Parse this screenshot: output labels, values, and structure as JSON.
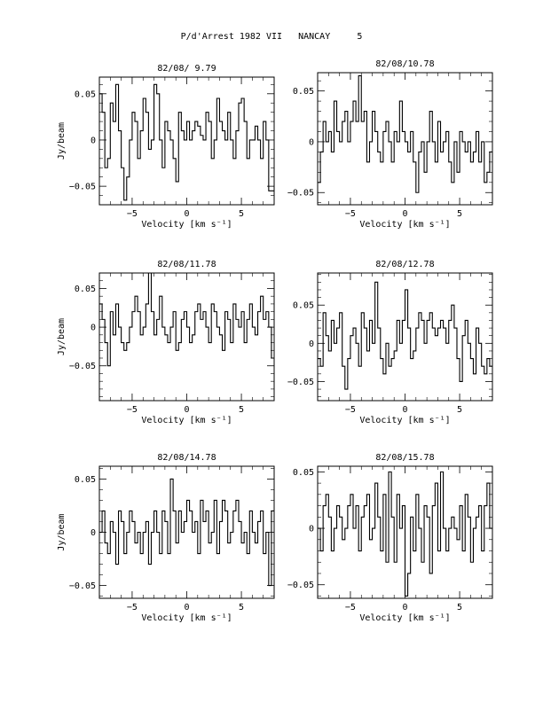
{
  "title": "P/d'Arrest 1982 VII   NANCAY     5",
  "chart_data": [
    {
      "type": "line",
      "title": "82/08/ 9.79",
      "xlabel": "Velocity [km s⁻¹]",
      "ylabel": "Jy/beam",
      "xlim": [
        -8,
        8
      ],
      "ylim": [
        -0.07,
        0.068
      ],
      "xticks": [
        -5,
        0,
        5
      ],
      "yticks": [
        -0.05,
        0,
        0.05
      ],
      "ytick_labels": [
        "−0.05",
        "0",
        "0.05"
      ],
      "series": [
        {
          "x": [
            -8.0,
            -7.75,
            -7.5,
            -7.25,
            -7.0,
            -6.75,
            -6.5,
            -6.25,
            -6.0,
            -5.75,
            -5.5,
            -5.25,
            -5.0,
            -4.75,
            -4.5,
            -4.25,
            -4.0,
            -3.75,
            -3.5,
            -3.25,
            -3.0,
            -2.75,
            -2.5,
            -2.25,
            -2.0,
            -1.75,
            -1.5,
            -1.25,
            -1.0,
            -0.75,
            -0.5,
            -0.25,
            0.0,
            0.25,
            0.5,
            0.75,
            1.0,
            1.25,
            1.5,
            1.75,
            2.0,
            2.25,
            2.5,
            2.75,
            3.0,
            3.25,
            3.5,
            3.75,
            4.0,
            4.25,
            4.5,
            4.75,
            5.0,
            5.25,
            5.5,
            5.75,
            6.0,
            6.25,
            6.5,
            6.75,
            7.0,
            7.25,
            7.5,
            7.75
          ],
          "y": [
            0.05,
            0.03,
            -0.03,
            -0.02,
            0.04,
            0.02,
            0.06,
            0.01,
            -0.03,
            -0.065,
            -0.04,
            0.0,
            0.03,
            0.02,
            -0.02,
            0.01,
            0.045,
            0.03,
            -0.01,
            0.0,
            0.06,
            0.05,
            0.0,
            -0.03,
            0.02,
            0.01,
            0.0,
            -0.02,
            -0.045,
            0.03,
            0.01,
            0.0,
            0.02,
            0.0,
            0.01,
            0.02,
            0.015,
            0.005,
            0.0,
            0.03,
            0.02,
            -0.02,
            0.0,
            0.045,
            0.02,
            0.01,
            0.0,
            0.03,
            0.0,
            -0.02,
            0.01,
            0.04,
            0.045,
            0.02,
            -0.02,
            0.0,
            0.0,
            0.015,
            0.0,
            -0.02,
            0.02,
            0.0,
            -0.055,
            -0.055
          ]
        }
      ]
    },
    {
      "type": "line",
      "title": "82/08/10.78",
      "xlabel": "Velocity [km s⁻¹]",
      "ylabel": "",
      "xlim": [
        -8,
        8
      ],
      "ylim": [
        -0.062,
        0.068
      ],
      "xticks": [
        -5,
        0,
        5
      ],
      "yticks": [
        -0.05,
        0,
        0.05
      ],
      "ytick_labels": [
        "−0.05",
        "0",
        "0.05"
      ],
      "series": [
        {
          "x": [
            -8.0,
            -7.75,
            -7.5,
            -7.25,
            -7.0,
            -6.75,
            -6.5,
            -6.25,
            -6.0,
            -5.75,
            -5.5,
            -5.25,
            -5.0,
            -4.75,
            -4.5,
            -4.25,
            -4.0,
            -3.75,
            -3.5,
            -3.25,
            -3.0,
            -2.75,
            -2.5,
            -2.25,
            -2.0,
            -1.75,
            -1.5,
            -1.25,
            -1.0,
            -0.75,
            -0.5,
            -0.25,
            0.0,
            0.25,
            0.5,
            0.75,
            1.0,
            1.25,
            1.5,
            1.75,
            2.0,
            2.25,
            2.5,
            2.75,
            3.0,
            3.25,
            3.5,
            3.75,
            4.0,
            4.25,
            4.5,
            4.75,
            5.0,
            5.25,
            5.5,
            5.75,
            6.0,
            6.25,
            6.5,
            6.75,
            7.0,
            7.25,
            7.5,
            7.75
          ],
          "y": [
            -0.04,
            -0.01,
            0.02,
            0.0,
            0.01,
            -0.01,
            0.04,
            0.01,
            0.0,
            0.02,
            0.03,
            0.0,
            0.02,
            0.04,
            0.02,
            0.065,
            0.02,
            0.03,
            -0.02,
            0.0,
            0.03,
            0.01,
            -0.01,
            -0.02,
            0.01,
            0.02,
            0.0,
            -0.02,
            0.01,
            0.0,
            0.04,
            0.01,
            0.0,
            -0.01,
            0.01,
            -0.02,
            -0.05,
            -0.01,
            0.0,
            -0.03,
            0.0,
            0.03,
            0.0,
            -0.02,
            0.02,
            -0.01,
            0.0,
            0.01,
            -0.02,
            -0.04,
            0.0,
            -0.03,
            0.01,
            0.0,
            -0.01,
            0.0,
            -0.02,
            -0.01,
            0.01,
            -0.02,
            0.0,
            -0.04,
            -0.03,
            -0.01
          ]
        }
      ]
    },
    {
      "type": "line",
      "title": "82/08/11.78",
      "xlabel": "Velocity [km s⁻¹]",
      "ylabel": "Jy/beam",
      "xlim": [
        -8,
        8
      ],
      "ylim": [
        -0.095,
        0.07
      ],
      "xticks": [
        -5,
        0,
        5
      ],
      "yticks": [
        -0.05,
        0,
        0.05
      ],
      "ytick_labels": [
        "−0.05",
        "0",
        "0.05"
      ],
      "series": [
        {
          "x": [
            -8.0,
            -7.75,
            -7.5,
            -7.25,
            -7.0,
            -6.75,
            -6.5,
            -6.25,
            -6.0,
            -5.75,
            -5.5,
            -5.25,
            -5.0,
            -4.75,
            -4.5,
            -4.25,
            -4.0,
            -3.75,
            -3.5,
            -3.25,
            -3.0,
            -2.75,
            -2.5,
            -2.25,
            -2.0,
            -1.75,
            -1.5,
            -1.25,
            -1.0,
            -0.75,
            -0.5,
            -0.25,
            0.0,
            0.25,
            0.5,
            0.75,
            1.0,
            1.25,
            1.5,
            1.75,
            2.0,
            2.25,
            2.5,
            2.75,
            3.0,
            3.25,
            3.5,
            3.75,
            4.0,
            4.25,
            4.5,
            4.75,
            5.0,
            5.25,
            5.5,
            5.75,
            6.0,
            6.25,
            6.5,
            6.75,
            7.0,
            7.25,
            7.5,
            7.75
          ],
          "y": [
            0.03,
            0.01,
            -0.02,
            -0.05,
            0.02,
            -0.01,
            0.03,
            0.0,
            -0.02,
            -0.03,
            -0.02,
            0.0,
            0.02,
            0.04,
            0.02,
            -0.01,
            0.0,
            0.03,
            0.07,
            0.02,
            -0.01,
            0.01,
            0.04,
            0.0,
            -0.01,
            -0.02,
            0.0,
            0.02,
            -0.03,
            -0.02,
            0.01,
            0.02,
            0.0,
            -0.02,
            -0.01,
            0.02,
            0.03,
            0.01,
            0.02,
            0.0,
            -0.02,
            0.03,
            0.02,
            0.0,
            -0.01,
            -0.03,
            0.02,
            0.01,
            -0.02,
            0.03,
            0.01,
            0.0,
            0.02,
            -0.02,
            0.01,
            0.03,
            0.0,
            -0.01,
            0.02,
            0.04,
            0.01,
            0.02,
            0.0,
            -0.04
          ]
        }
      ]
    },
    {
      "type": "line",
      "title": "82/08/12.78",
      "xlabel": "Velocity [km s⁻¹]",
      "ylabel": "",
      "xlim": [
        -8,
        8
      ],
      "ylim": [
        -0.075,
        0.092
      ],
      "xticks": [
        -5,
        0,
        5
      ],
      "yticks": [
        -0.05,
        0,
        0.05
      ],
      "ytick_labels": [
        "−0.05",
        "0",
        "0.05"
      ],
      "series": [
        {
          "x": [
            -8.0,
            -7.75,
            -7.5,
            -7.25,
            -7.0,
            -6.75,
            -6.5,
            -6.25,
            -6.0,
            -5.75,
            -5.5,
            -5.25,
            -5.0,
            -4.75,
            -4.5,
            -4.25,
            -4.0,
            -3.75,
            -3.5,
            -3.25,
            -3.0,
            -2.75,
            -2.5,
            -2.25,
            -2.0,
            -1.75,
            -1.5,
            -1.25,
            -1.0,
            -0.75,
            -0.5,
            -0.25,
            0.0,
            0.25,
            0.5,
            0.75,
            1.0,
            1.25,
            1.5,
            1.75,
            2.0,
            2.25,
            2.5,
            2.75,
            3.0,
            3.25,
            3.5,
            3.75,
            4.0,
            4.25,
            4.5,
            4.75,
            5.0,
            5.25,
            5.5,
            5.75,
            6.0,
            6.25,
            6.5,
            6.75,
            7.0,
            7.25,
            7.5,
            7.75
          ],
          "y": [
            -0.02,
            -0.03,
            0.04,
            0.01,
            -0.01,
            0.03,
            0.0,
            0.02,
            0.04,
            -0.03,
            -0.06,
            -0.02,
            0.01,
            0.02,
            0.0,
            -0.03,
            0.04,
            0.02,
            -0.01,
            0.03,
            0.0,
            0.08,
            0.02,
            -0.02,
            -0.04,
            0.0,
            -0.03,
            -0.02,
            -0.01,
            0.03,
            0.0,
            0.03,
            0.07,
            0.02,
            -0.02,
            -0.01,
            0.02,
            0.04,
            0.03,
            0.0,
            0.03,
            0.04,
            0.02,
            0.01,
            0.02,
            0.03,
            0.02,
            0.0,
            0.03,
            0.05,
            0.02,
            -0.02,
            -0.05,
            0.01,
            0.03,
            0.0,
            -0.02,
            -0.04,
            0.02,
            0.0,
            -0.03,
            -0.04,
            -0.02,
            -0.03
          ]
        }
      ]
    },
    {
      "type": "line",
      "title": "82/08/14.78",
      "xlabel": "Velocity [km s⁻¹]",
      "ylabel": "Jy/beam",
      "xlim": [
        -8,
        8
      ],
      "ylim": [
        -0.062,
        0.062
      ],
      "xticks": [
        -5,
        0,
        5
      ],
      "yticks": [
        -0.05,
        0,
        0.05
      ],
      "ytick_labels": [
        "−0.05",
        "0",
        "0.05"
      ],
      "series": [
        {
          "x": [
            -8.0,
            -7.75,
            -7.5,
            -7.25,
            -7.0,
            -6.75,
            -6.5,
            -6.25,
            -6.0,
            -5.75,
            -5.5,
            -5.25,
            -5.0,
            -4.75,
            -4.5,
            -4.25,
            -4.0,
            -3.75,
            -3.5,
            -3.25,
            -3.0,
            -2.75,
            -2.5,
            -2.25,
            -2.0,
            -1.75,
            -1.5,
            -1.25,
            -1.0,
            -0.75,
            -0.5,
            -0.25,
            0.0,
            0.25,
            0.5,
            0.75,
            1.0,
            1.25,
            1.5,
            1.75,
            2.0,
            2.25,
            2.5,
            2.75,
            3.0,
            3.25,
            3.5,
            3.75,
            4.0,
            4.25,
            4.5,
            4.75,
            5.0,
            5.25,
            5.5,
            5.75,
            6.0,
            6.25,
            6.5,
            6.75,
            7.0,
            7.25,
            7.5,
            7.75
          ],
          "y": [
            0.0,
            0.02,
            -0.01,
            -0.02,
            0.01,
            0.0,
            -0.03,
            0.02,
            0.01,
            -0.02,
            0.0,
            0.02,
            0.01,
            -0.01,
            0.0,
            -0.02,
            0.0,
            0.01,
            -0.03,
            0.0,
            0.02,
            0.0,
            -0.02,
            0.02,
            0.01,
            -0.02,
            0.05,
            0.02,
            -0.01,
            0.02,
            0.0,
            0.01,
            0.03,
            0.02,
            0.0,
            0.01,
            -0.02,
            0.03,
            0.01,
            0.02,
            -0.01,
            0.0,
            0.03,
            -0.02,
            0.01,
            0.03,
            0.02,
            -0.01,
            0.0,
            0.02,
            0.03,
            0.01,
            -0.01,
            0.0,
            -0.02,
            0.02,
            0.0,
            -0.01,
            0.01,
            0.02,
            -0.02,
            0.0,
            -0.05,
            0.02
          ]
        }
      ]
    },
    {
      "type": "line",
      "title": "82/08/15.78",
      "xlabel": "Velocity [km s⁻¹]",
      "ylabel": "",
      "xlim": [
        -8,
        8
      ],
      "ylim": [
        -0.062,
        0.055
      ],
      "xticks": [
        -5,
        0,
        5
      ],
      "yticks": [
        -0.05,
        0,
        0.05
      ],
      "ytick_labels": [
        "−0.05",
        "0",
        "0.05"
      ],
      "series": [
        {
          "x": [
            -8.0,
            -7.75,
            -7.5,
            -7.25,
            -7.0,
            -6.75,
            -6.5,
            -6.25,
            -6.0,
            -5.75,
            -5.5,
            -5.25,
            -5.0,
            -4.75,
            -4.5,
            -4.25,
            -4.0,
            -3.75,
            -3.5,
            -3.25,
            -3.0,
            -2.75,
            -2.5,
            -2.25,
            -2.0,
            -1.75,
            -1.5,
            -1.25,
            -1.0,
            -0.75,
            -0.5,
            -0.25,
            0.0,
            0.25,
            0.5,
            0.75,
            1.0,
            1.25,
            1.5,
            1.75,
            2.0,
            2.25,
            2.5,
            2.75,
            3.0,
            3.25,
            3.5,
            3.75,
            4.0,
            4.25,
            4.5,
            4.75,
            5.0,
            5.25,
            5.5,
            5.75,
            6.0,
            6.25,
            6.5,
            6.75,
            7.0,
            7.25,
            7.5,
            7.75
          ],
          "y": [
            0.0,
            -0.02,
            0.02,
            0.03,
            0.01,
            -0.02,
            0.0,
            0.02,
            0.01,
            -0.01,
            0.0,
            0.02,
            0.03,
            0.0,
            0.02,
            -0.02,
            0.01,
            0.02,
            0.03,
            -0.01,
            0.0,
            0.04,
            0.01,
            -0.02,
            0.03,
            -0.03,
            0.05,
            0.01,
            -0.03,
            0.03,
            0.0,
            0.02,
            -0.06,
            -0.04,
            0.01,
            -0.02,
            0.03,
            0.0,
            -0.03,
            0.02,
            0.01,
            -0.04,
            0.02,
            0.04,
            -0.02,
            0.05,
            0.0,
            -0.02,
            0.0,
            0.01,
            0.0,
            -0.01,
            0.02,
            -0.02,
            0.03,
            0.01,
            -0.03,
            0.0,
            0.01,
            0.02,
            -0.02,
            0.02,
            0.04,
            0.0
          ]
        }
      ]
    }
  ]
}
